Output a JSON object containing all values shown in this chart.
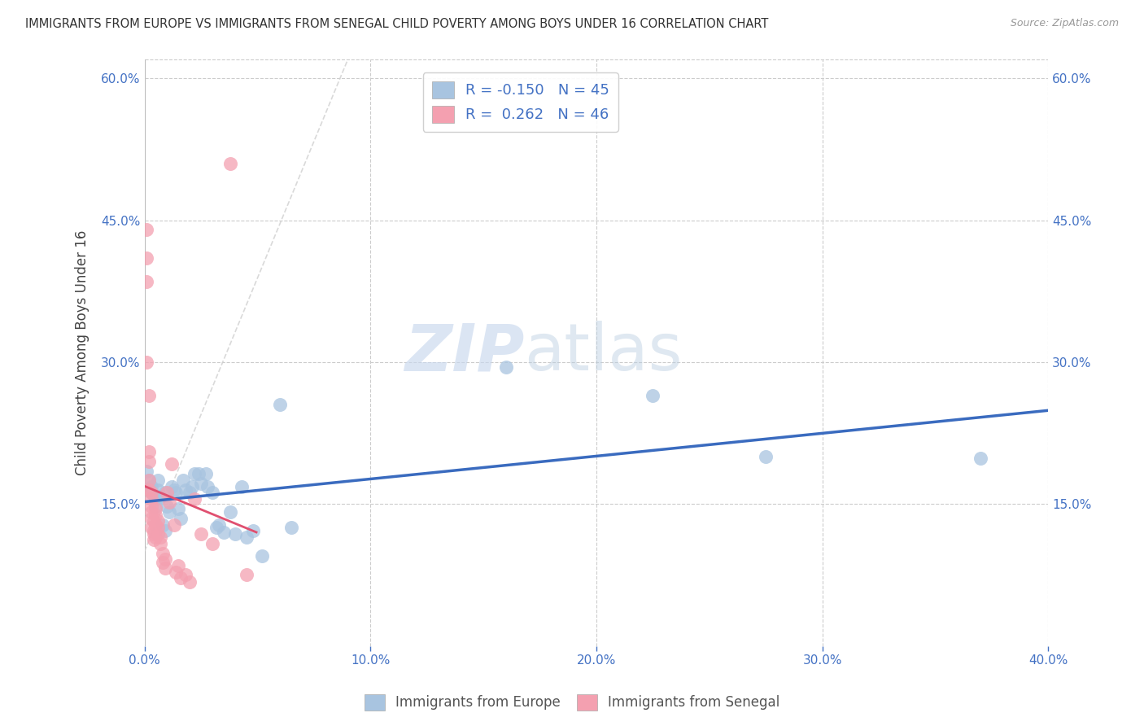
{
  "title": "IMMIGRANTS FROM EUROPE VS IMMIGRANTS FROM SENEGAL CHILD POVERTY AMONG BOYS UNDER 16 CORRELATION CHART",
  "source": "Source: ZipAtlas.com",
  "ylabel": "Child Poverty Among Boys Under 16",
  "xlim": [
    0,
    0.4
  ],
  "ylim": [
    0,
    0.62
  ],
  "europe_R": "-0.150",
  "europe_N": "45",
  "senegal_R": "0.262",
  "senegal_N": "46",
  "europe_color": "#a8c4e0",
  "senegal_color": "#f4a0b0",
  "europe_line_color": "#3a6bbf",
  "senegal_line_color": "#e05070",
  "diag_line_color": "#d0d0d0",
  "background_color": "#ffffff",
  "watermark_zip": "ZIP",
  "watermark_atlas": "atlas",
  "europe_x": [
    0.001,
    0.002,
    0.003,
    0.003,
    0.004,
    0.005,
    0.005,
    0.006,
    0.006,
    0.007,
    0.008,
    0.009,
    0.009,
    0.01,
    0.011,
    0.012,
    0.013,
    0.014,
    0.015,
    0.016,
    0.017,
    0.018,
    0.02,
    0.021,
    0.022,
    0.024,
    0.025,
    0.027,
    0.028,
    0.03,
    0.032,
    0.033,
    0.035,
    0.038,
    0.04,
    0.043,
    0.045,
    0.048,
    0.052,
    0.06,
    0.065,
    0.16,
    0.225,
    0.275,
    0.37
  ],
  "europe_y": [
    0.185,
    0.175,
    0.168,
    0.162,
    0.16,
    0.155,
    0.148,
    0.175,
    0.165,
    0.158,
    0.128,
    0.162,
    0.122,
    0.148,
    0.142,
    0.168,
    0.165,
    0.162,
    0.145,
    0.135,
    0.175,
    0.165,
    0.162,
    0.168,
    0.182,
    0.182,
    0.172,
    0.182,
    0.168,
    0.162,
    0.125,
    0.128,
    0.12,
    0.142,
    0.118,
    0.168,
    0.115,
    0.122,
    0.095,
    0.255,
    0.125,
    0.295,
    0.265,
    0.2,
    0.198
  ],
  "senegal_x": [
    0.001,
    0.001,
    0.001,
    0.001,
    0.002,
    0.002,
    0.002,
    0.002,
    0.002,
    0.003,
    0.003,
    0.003,
    0.003,
    0.003,
    0.003,
    0.004,
    0.004,
    0.004,
    0.004,
    0.005,
    0.005,
    0.005,
    0.005,
    0.006,
    0.006,
    0.006,
    0.007,
    0.007,
    0.008,
    0.008,
    0.009,
    0.009,
    0.01,
    0.011,
    0.012,
    0.013,
    0.014,
    0.015,
    0.016,
    0.018,
    0.02,
    0.022,
    0.025,
    0.03,
    0.038,
    0.045
  ],
  "senegal_y": [
    0.44,
    0.41,
    0.385,
    0.3,
    0.265,
    0.205,
    0.195,
    0.175,
    0.165,
    0.162,
    0.155,
    0.148,
    0.142,
    0.135,
    0.125,
    0.132,
    0.122,
    0.118,
    0.112,
    0.145,
    0.138,
    0.128,
    0.115,
    0.132,
    0.125,
    0.118,
    0.115,
    0.108,
    0.098,
    0.088,
    0.092,
    0.082,
    0.162,
    0.152,
    0.192,
    0.128,
    0.078,
    0.085,
    0.072,
    0.075,
    0.068,
    0.155,
    0.118,
    0.108,
    0.51,
    0.075
  ]
}
